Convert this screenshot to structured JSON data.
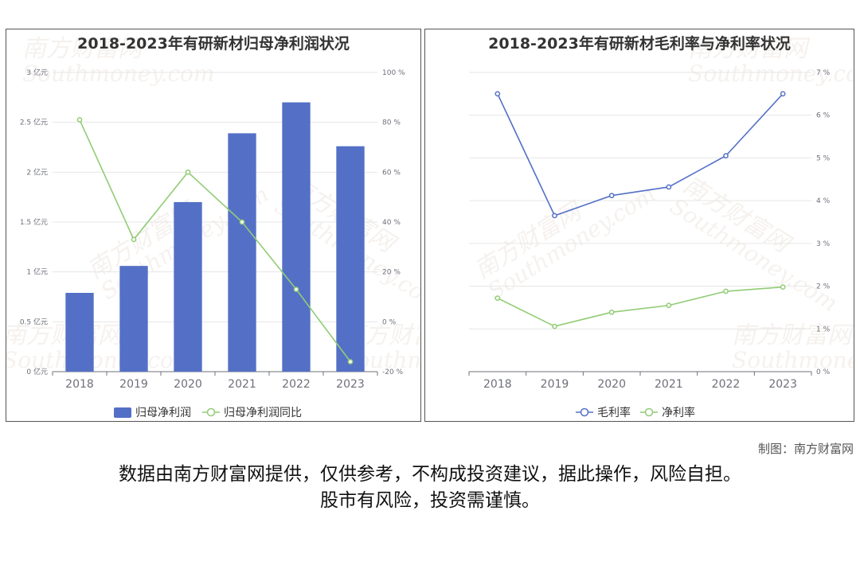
{
  "watermark": {
    "brand": "南方财富网",
    "domain": "outhmoney.com"
  },
  "credit": "制图：南方财富网",
  "disclaimer": {
    "line1": "数据由南方财富网提供，仅供参考，不构成投资建议，据此操作，风险自担。",
    "line2": "股市有风险，投资需谨慎。"
  },
  "chart_data": [
    {
      "type": "bar",
      "title": "2018-2023年有研新材归母净利润状况",
      "categories": [
        "2018",
        "2019",
        "2020",
        "2021",
        "2022",
        "2023"
      ],
      "ylim": [
        0,
        3
      ],
      "ylim_right": [
        -20,
        100
      ],
      "y_ticks": [
        "0 亿元",
        "0.5 亿元",
        "1 亿元",
        "1.5 亿元",
        "2 亿元",
        "2.5 亿元",
        "3 亿元"
      ],
      "y_ticks_right": [
        "-20 %",
        "0 %",
        "20 %",
        "40 %",
        "60 %",
        "80 %",
        "100 %"
      ],
      "legend_position": "bottom",
      "grid": true,
      "series": [
        {
          "name": "归母净利润",
          "type": "bar",
          "axis": "left",
          "color": "#5470c6",
          "values": [
            0.79,
            1.06,
            1.7,
            2.39,
            2.7,
            2.26
          ]
        },
        {
          "name": "归母净利润同比",
          "type": "line",
          "axis": "right",
          "color": "#91cc75",
          "values": [
            81,
            33,
            60,
            40,
            13,
            -16
          ]
        }
      ]
    },
    {
      "type": "line",
      "title": "2018-2023年有研新材毛利率与净利率状况",
      "categories": [
        "2018",
        "2019",
        "2020",
        "2021",
        "2022",
        "2023"
      ],
      "ylim": [
        0,
        7
      ],
      "y_ticks": [
        "0 %",
        "1 %",
        "2 %",
        "3 %",
        "4 %",
        "5 %",
        "6 %",
        "7 %"
      ],
      "legend_position": "bottom",
      "grid": true,
      "series": [
        {
          "name": "毛利率",
          "type": "line",
          "color": "#5470c6",
          "values": [
            6.5,
            3.65,
            4.12,
            4.32,
            5.05,
            6.5
          ]
        },
        {
          "name": "净利率",
          "type": "line",
          "color": "#91cc75",
          "values": [
            1.72,
            1.06,
            1.39,
            1.55,
            1.88,
            1.98
          ]
        }
      ]
    }
  ]
}
